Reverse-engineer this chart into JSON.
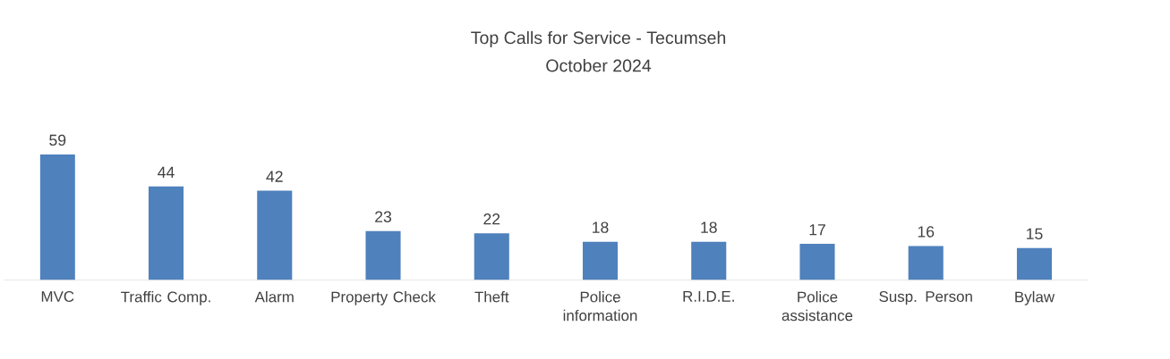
{
  "chart_data": {
    "type": "bar",
    "title": "Top Calls for Service - Tecumseh",
    "subtitle": "October 2024",
    "categories": [
      "MVC",
      "Traffic Comp.",
      "Alarm",
      "Property Check",
      "Theft",
      "Police information",
      "R.I.D.E.",
      "Police assistance",
      "Susp. Person",
      "Bylaw"
    ],
    "values": [
      59,
      44,
      42,
      23,
      22,
      18,
      18,
      17,
      16,
      15
    ],
    "color": "#4f81bd",
    "data_labels": true
  }
}
